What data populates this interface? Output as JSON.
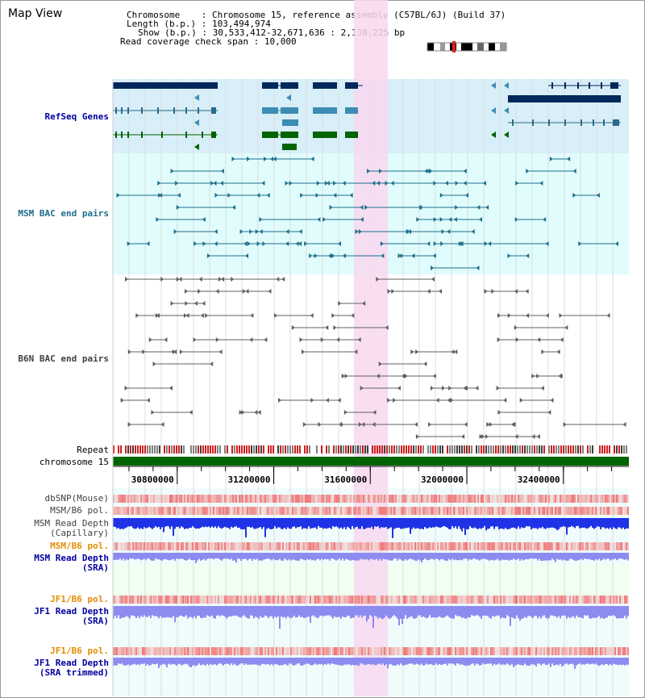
{
  "view_title": "Map View",
  "info": {
    "chromosome_label": "Chromosome",
    "chromosome_value": "Chromosome 15, reference assembly (C57BL/6J) (Build 37)",
    "length_label": "Length (b.p.)",
    "length_value": "103,494,974",
    "show_label": "Show (b.p.)",
    "show_value": "30,533,412-32,671,636 : 2,138,225 bp",
    "coverage_label": "Read coverage check span",
    "coverage_value": "10,000"
  },
  "tracks": {
    "refseq": "RefSeq Genes",
    "msm_bac": "MSM BAC end pairs",
    "b6n_bac": "B6N BAC end pairs",
    "repeat": "Repeat",
    "chromosome": "chromosome 15",
    "dbsnp": "dbSNP(Mouse)",
    "msm_b6_pol": "MSM/B6 pol.",
    "msm_depth_cap_1": "MSM Read Depth",
    "msm_depth_cap_2": "(Capillary)",
    "msm_b6_pol2": "MSM/B6 pol.",
    "msm_depth_sra_1": "MSM Read Depth",
    "msm_depth_sra_2": "(SRA)",
    "jf1_b6_pol": "JF1/B6 pol.",
    "jf1_depth_sra_1": "JF1 Read Depth",
    "jf1_depth_sra_2": "(SRA)",
    "jf1_b6_pol2": "JF1/B6 pol.",
    "jf1_depth_trim_1": "JF1 Read Depth",
    "jf1_depth_trim_2": "(SRA trimmed)"
  },
  "axis": {
    "ticks": [
      "30800000",
      "31200000",
      "31600000",
      "32000000",
      "32400000"
    ],
    "range_bp": [
      30533412,
      32671636
    ]
  },
  "colors": {
    "highlight": "#f8d8f0",
    "refseq_bg": "#d8eef8",
    "msm_bg": "#e0fcfc",
    "refseq_dark": "#00285a",
    "refseq_mid": "#3c8cb4",
    "refseq_green": "#006400",
    "msm_line": "#1e6e8c",
    "b6n_line": "#606060",
    "chromosome_bar": "#006400",
    "snp_red": "#e03030",
    "depth_blue": "#1e32e6",
    "depth_light": "#8c8cf0",
    "orange_label": "#e68c00",
    "navy_label": "#0000a0"
  }
}
